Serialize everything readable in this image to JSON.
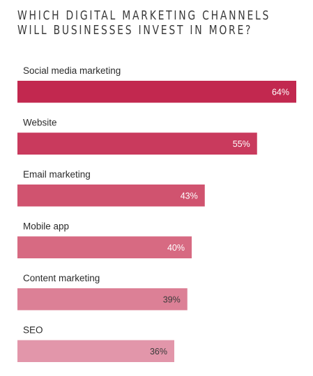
{
  "title_lines": [
    "WHICH DIGITAL MARKETING CHANNELS",
    "WILL BUSINESSES INVEST IN MORE?"
  ],
  "chart_data": {
    "type": "bar",
    "orientation": "horizontal",
    "title": "WHICH DIGITAL MARKETING CHANNELS WILL BUSINESSES INVEST IN MORE?",
    "categories": [
      "Social media marketing",
      "Website",
      "Email marketing",
      "Mobile app",
      "Content marketing",
      "SEO"
    ],
    "values": [
      64,
      55,
      43,
      40,
      39,
      36
    ],
    "value_labels": [
      "64%",
      "55%",
      "43%",
      "40%",
      "39%",
      "36%"
    ],
    "unit": "%",
    "xlim": [
      0,
      64
    ],
    "grid": false,
    "legend": "none",
    "colors": [
      "#c2284f",
      "#c93a5d",
      "#d0536f",
      "#d76a82",
      "#dc8096",
      "#e296aa"
    ],
    "value_label_colors": [
      "#ffffff",
      "#ffffff",
      "#ffffff",
      "#ffffff",
      "#3a3a3a",
      "#3a3a3a"
    ]
  }
}
